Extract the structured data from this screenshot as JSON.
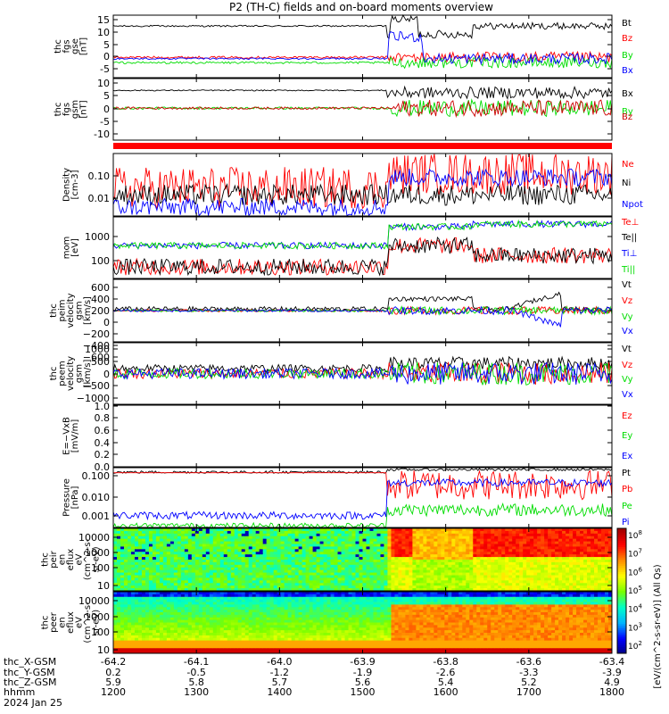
{
  "title": "P2 (TH-C) fields and on-board moments overview",
  "chart_data": {
    "type": "line",
    "title": "P2 (TH-C) fields and on-board moments overview",
    "x_axis": {
      "hhmm": [
        "1200",
        "1300",
        "1400",
        "1500",
        "1600",
        "1700",
        "1800"
      ],
      "date_label": "2024 Jan 25",
      "ephemeris": [
        {
          "label": "thc_X-GSM",
          "values": [
            "-64.2",
            "-64.1",
            "-64.0",
            "-63.9",
            "-63.8",
            "-63.6",
            "-63.4"
          ]
        },
        {
          "label": "thc_Y-GSM",
          "values": [
            "0.2",
            "-0.5",
            "-1.2",
            "-1.9",
            "-2.6",
            "-3.3",
            "-3.9"
          ]
        },
        {
          "label": "thc_Z-GSM",
          "values": [
            "5.9",
            "5.8",
            "5.7",
            "5.6",
            "5.4",
            "5.2",
            "4.9"
          ]
        },
        {
          "label": "hhmm",
          "values": [
            "1200",
            "1300",
            "1400",
            "1500",
            "1600",
            "1700",
            "1800"
          ]
        }
      ]
    },
    "panels": [
      {
        "id": "fgs-gse",
        "ylabel": [
          "thc",
          "fgs",
          "gse",
          "[nT]"
        ],
        "yscale": "linear",
        "ylim": [
          -7,
          16
        ],
        "yticks": [
          "15",
          "10",
          "5",
          "0",
          "-5"
        ],
        "series": [
          {
            "name": "Bt",
            "color": "#000000",
            "baseline": 12,
            "after_start": 15.5
          },
          {
            "name": "Bz",
            "color": "#ff0000",
            "baseline": 0.5
          },
          {
            "name": "By",
            "color": "#00dd00",
            "baseline": -1.5
          },
          {
            "name": "Bx",
            "color": "#0000ff",
            "baseline": 0
          }
        ]
      },
      {
        "id": "fgs-gsm",
        "ylabel": [
          "thc",
          "fgs",
          "gsm",
          "[nT]"
        ],
        "yscale": "linear",
        "ylim": [
          -15,
          11
        ],
        "yticks": [
          "10",
          "5",
          "0",
          "-5",
          "-10"
        ],
        "series": [
          {
            "name": "Bx",
            "color": "#000000",
            "baseline": 6
          },
          {
            "name": "By",
            "color": "#00dd00",
            "baseline": -1.5
          },
          {
            "name": "Bz",
            "color": "#cc0000",
            "baseline": -1.5
          }
        ]
      },
      {
        "id": "density",
        "ylabel": [
          "Density",
          "[cm-3]"
        ],
        "yscale": "log",
        "ylim": [
          0.005,
          0.3
        ],
        "yticks": [
          "0.10",
          "0.01"
        ],
        "series": [
          {
            "name": "Ne",
            "color": "#ff0000",
            "baseline": 0.05
          },
          {
            "name": "Ni",
            "color": "#000000",
            "baseline": 0.02
          },
          {
            "name": "Npot",
            "color": "#0000ff",
            "baseline": 0.008
          }
        ]
      },
      {
        "id": "temperature",
        "ylabel": [
          "mom",
          "[eV]"
        ],
        "yscale": "log",
        "ylim": [
          40,
          3000
        ],
        "yticks": [
          "1000",
          "100"
        ],
        "series": [
          {
            "name": "Te⊥",
            "color": "#ff0000",
            "baseline": 90
          },
          {
            "name": "Te||",
            "color": "#000000",
            "baseline": 85
          },
          {
            "name": "Ti⊥",
            "color": "#0000ff",
            "baseline": 400
          },
          {
            "name": "Ti||",
            "color": "#00dd00",
            "baseline": 350
          }
        ]
      },
      {
        "id": "vel-peim",
        "ylabel": [
          "thc",
          "peim",
          "velocity",
          "gsm",
          "[km/s]"
        ],
        "yscale": "linear",
        "ylim": [
          -800,
          800
        ],
        "yticks": [
          "600",
          "400",
          "200",
          "0",
          "−200",
          "−400",
          "−600"
        ],
        "series": [
          {
            "name": "Vt",
            "color": "#000000",
            "baseline": 30
          },
          {
            "name": "Vz",
            "color": "#ff0000",
            "baseline": 0
          },
          {
            "name": "Vy",
            "color": "#00dd00",
            "baseline": 0
          },
          {
            "name": "Vx",
            "color": "#0000ff",
            "baseline": 0
          }
        ]
      },
      {
        "id": "vel-peem",
        "ylabel": [
          "thc",
          "peem",
          "velocity",
          "gsm",
          "[km/s]"
        ],
        "yscale": "linear",
        "ylim": [
          -1200,
          1200
        ],
        "yticks": [
          "1000",
          "500",
          "0",
          "−500",
          "−1000"
        ],
        "series": [
          {
            "name": "Vt",
            "color": "#000000",
            "baseline": 200
          },
          {
            "name": "Vz",
            "color": "#ff0000",
            "baseline": 0
          },
          {
            "name": "Vy",
            "color": "#00dd00",
            "baseline": 0
          },
          {
            "name": "Vx",
            "color": "#0000ff",
            "baseline": 0
          }
        ]
      },
      {
        "id": "efield",
        "ylabel": [
          "E=−VxB",
          "[mV/m]"
        ],
        "yscale": "linear",
        "ylim": [
          0,
          1
        ],
        "yticks": [
          "1.0",
          "0.8",
          "0.6",
          "0.4",
          "0.2",
          "0.0"
        ],
        "series": [
          {
            "name": "Ez",
            "color": "#ff0000"
          },
          {
            "name": "Ey",
            "color": "#00dd00"
          },
          {
            "name": "Ex",
            "color": "#0000ff"
          }
        ]
      },
      {
        "id": "pressure",
        "ylabel": [
          "Pressure",
          "[nPa]"
        ],
        "yscale": "log",
        "ylim": [
          0.0005,
          0.12
        ],
        "yticks": [
          "0.100",
          "0.010",
          "0.001"
        ],
        "series": [
          {
            "name": "Pt",
            "color": "#000000",
            "baseline": 0.08
          },
          {
            "name": "Pb",
            "color": "#ff0000",
            "baseline": 0.08
          },
          {
            "name": "Pe",
            "color": "#00dd00",
            "baseline": 0.0006
          },
          {
            "name": "Pi",
            "color": "#0000ff",
            "baseline": 0.0015
          }
        ]
      },
      {
        "id": "peir-eflux",
        "type": "heatmap",
        "ylabel": [
          "thc",
          "peir",
          "en",
          "eflux",
          "eV",
          "(cm^2-s-",
          "sr-eV)"
        ],
        "yscale": "log",
        "ylim": [
          7,
          25000
        ],
        "yticks": [
          "10000",
          "1000",
          "100",
          "10"
        ]
      },
      {
        "id": "peer-eflux",
        "type": "heatmap",
        "ylabel": [
          "thc",
          "peer",
          "en",
          "eflux",
          "eV",
          "(cm^2-s-",
          "sr-eV)"
        ],
        "yscale": "log",
        "ylim": [
          7,
          25000
        ],
        "yticks": [
          "10000",
          "1000",
          "100",
          "10"
        ]
      }
    ],
    "colorbar": {
      "label": "[eV/(cm^2-s-sr-eV)] (All Qs)",
      "ticks": [
        "10^8",
        "10^7",
        "10^6",
        "10^5",
        "10^4",
        "10^3",
        "10^2"
      ],
      "scale": "log",
      "range": [
        "10^2",
        "10^8"
      ]
    }
  }
}
